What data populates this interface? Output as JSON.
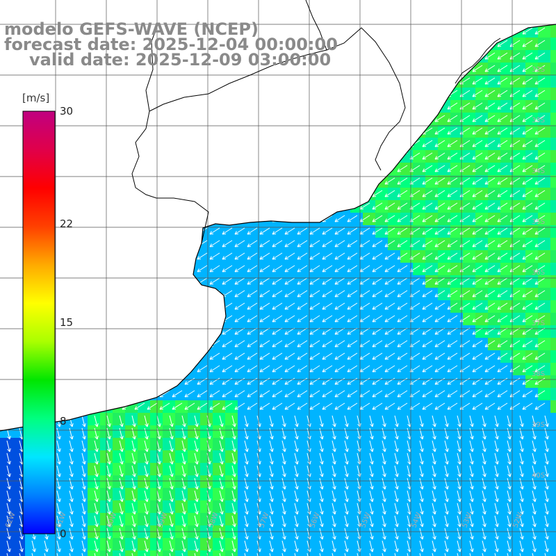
{
  "title": {
    "line1": "modelo GEFS-WAVE (NCEP)",
    "line2": "forecast date: 2025-12-04 00:00:00",
    "line3": "valid date: 2025-12-09 03:00:00"
  },
  "colorbar": {
    "unit": "[m/s]",
    "ticks": [
      "30",
      "22",
      "15",
      "8",
      "0"
    ],
    "tick_values": [
      30,
      22,
      15,
      8,
      0
    ],
    "range": [
      0,
      30
    ],
    "colors": [
      "#0000ff",
      "#0080ff",
      "#00e6ff",
      "#00ff80",
      "#00e600",
      "#aaff00",
      "#ffff00",
      "#ffaa00",
      "#ff4000",
      "#ff0000",
      "#e0004a",
      "#c00080"
    ]
  },
  "map": {
    "field": "wind speed and direction",
    "lat_labels": [
      "32S",
      "33S",
      "34S",
      "35S",
      "36S",
      "37S",
      "38S",
      "39S",
      "40S"
    ],
    "lon_labels": [
      "62W",
      "61W",
      "60W",
      "59W",
      "58W",
      "57W",
      "56W",
      "55W",
      "54W",
      "53W",
      "52W",
      "51W"
    ],
    "land_color": "#ffffff",
    "coast_color": "#000000",
    "grid_color": "#555555",
    "arrow_color": "#ffffff"
  }
}
